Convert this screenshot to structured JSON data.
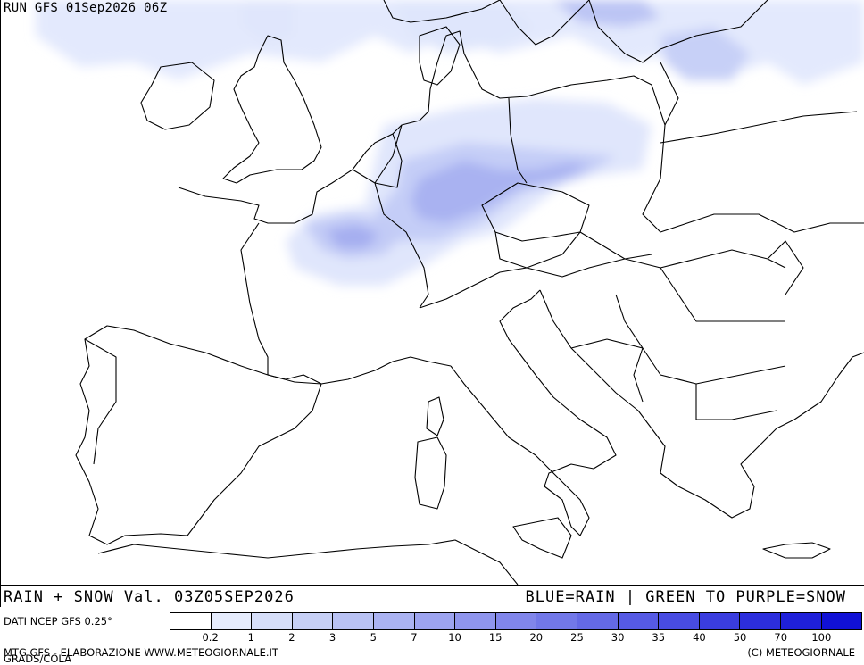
{
  "header": {
    "run_label": "RUN GFS 01Sep2026 06Z"
  },
  "footer": {
    "product_label": "RAIN + SNOW Val. 03Z05SEP2026",
    "color_key_label": "BLUE=RAIN | GREEN TO PURPLE=SNOW",
    "data_source": "DATI NCEP GFS 0.25°",
    "credit_left": "MTG GFS - ELABORAZIONE WWW.METEOGIORNALE.IT",
    "credit_grads": "GRADS/COLA",
    "copyright": "(C) METEOGIORNALE"
  },
  "legend": {
    "colors": [
      "#ffffff",
      "#e6ecfd",
      "#d6def9",
      "#c7d0f6",
      "#b9c2f4",
      "#abb3f2",
      "#9da4f0",
      "#8f95ed",
      "#8186eb",
      "#7278e9",
      "#6469e6",
      "#565ae4",
      "#484ce2",
      "#3a3ddf",
      "#2c2edd",
      "#1f20da",
      "#1111d6"
    ],
    "tick_labels": [
      "0.2",
      "1",
      "2",
      "3",
      "5",
      "7",
      "10",
      "15",
      "20",
      "25",
      "30",
      "35",
      "40",
      "50",
      "70",
      "100"
    ]
  },
  "map": {
    "region": "Europe",
    "boundary_color": "#000000",
    "precip_palette": [
      "#e2e9fd",
      "#c5d0f7",
      "#a8b3f0",
      "#8b92ea"
    ]
  }
}
